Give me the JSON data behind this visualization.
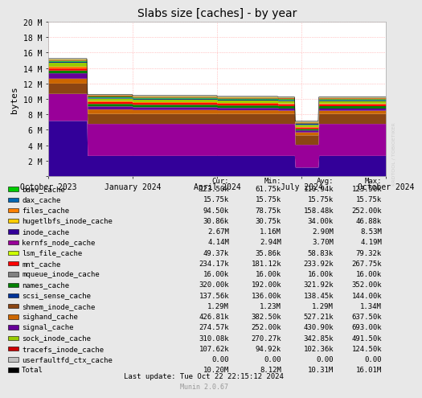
{
  "title": "Slabs size [caches] - by year",
  "ylabel": "bytes",
  "background_color": "#e8e8e8",
  "plot_background": "#ffffff",
  "grid_color": "#ff9999",
  "x_tick_labels": [
    "October 2023",
    "January 2024",
    "April 2024",
    "July 2024",
    "October 2024"
  ],
  "x_tick_pos": [
    0.0,
    0.25,
    0.5,
    0.75,
    1.0
  ],
  "y_tick_vals": [
    0,
    2000000,
    4000000,
    6000000,
    8000000,
    10000000,
    12000000,
    14000000,
    16000000,
    18000000,
    20000000
  ],
  "y_tick_labels": [
    "",
    "2 M",
    "4 M",
    "6 M",
    "8 M",
    "10 M",
    "12 M",
    "14 M",
    "16 M",
    "18 M",
    "20 M"
  ],
  "ylim": [
    0,
    20000000
  ],
  "watermark": "RRDTOOL / TOBIOETIKER",
  "last_update": "Last update: Tue Oct 22 22:15:12 2024",
  "munin_version": "Munin 2.0.67",
  "legend": [
    {
      "label": "bdev_cache",
      "color": "#00cc00",
      "cur": "123.50k",
      "min": "61.75k",
      "avg": "110.94k",
      "max": "123.50k"
    },
    {
      "label": "dax_cache",
      "color": "#0066b3",
      "cur": "15.75k",
      "min": "15.75k",
      "avg": "15.75k",
      "max": "15.75k"
    },
    {
      "label": "files_cache",
      "color": "#ff8000",
      "cur": "94.50k",
      "min": "78.75k",
      "avg": "158.48k",
      "max": "252.00k"
    },
    {
      "label": "hugetlbfs_inode_cache",
      "color": "#ffcc00",
      "cur": "30.86k",
      "min": "30.75k",
      "avg": "34.00k",
      "max": "46.88k"
    },
    {
      "label": "inode_cache",
      "color": "#330099",
      "cur": "2.67M",
      "min": "1.16M",
      "avg": "2.90M",
      "max": "8.53M"
    },
    {
      "label": "kernfs_node_cache",
      "color": "#990099",
      "cur": "4.14M",
      "min": "2.94M",
      "avg": "3.70M",
      "max": "4.19M"
    },
    {
      "label": "lsm_file_cache",
      "color": "#ccff00",
      "cur": "49.37k",
      "min": "35.86k",
      "avg": "58.83k",
      "max": "79.32k"
    },
    {
      "label": "mnt_cache",
      "color": "#ff0000",
      "cur": "234.17k",
      "min": "181.12k",
      "avg": "233.92k",
      "max": "267.75k"
    },
    {
      "label": "mqueue_inode_cache",
      "color": "#808080",
      "cur": "16.00k",
      "min": "16.00k",
      "avg": "16.00k",
      "max": "16.00k"
    },
    {
      "label": "names_cache",
      "color": "#008000",
      "cur": "320.00k",
      "min": "192.00k",
      "avg": "321.92k",
      "max": "352.00k"
    },
    {
      "label": "scsi_sense_cache",
      "color": "#003399",
      "cur": "137.56k",
      "min": "136.00k",
      "avg": "138.45k",
      "max": "144.00k"
    },
    {
      "label": "shmem_inode_cache",
      "color": "#8b4513",
      "cur": "1.29M",
      "min": "1.23M",
      "avg": "1.29M",
      "max": "1.34M"
    },
    {
      "label": "sighand_cache",
      "color": "#cc6600",
      "cur": "426.81k",
      "min": "382.50k",
      "avg": "527.21k",
      "max": "637.50k"
    },
    {
      "label": "signal_cache",
      "color": "#660099",
      "cur": "274.57k",
      "min": "252.00k",
      "avg": "430.90k",
      "max": "693.00k"
    },
    {
      "label": "sock_inode_cache",
      "color": "#99cc00",
      "cur": "310.08k",
      "min": "270.27k",
      "avg": "342.85k",
      "max": "491.50k"
    },
    {
      "label": "tracefs_inode_cache",
      "color": "#cc0000",
      "cur": "107.62k",
      "min": "94.92k",
      "avg": "102.36k",
      "max": "124.50k"
    },
    {
      "label": "userfaultfd_ctx_cache",
      "color": "#c0c0c0",
      "cur": "0.00",
      "min": "0.00",
      "avg": "0.00",
      "max": "0.00"
    },
    {
      "label": "Total",
      "color": "#000000",
      "cur": "10.20M",
      "min": "8.12M",
      "avg": "10.31M",
      "max": "16.01M"
    }
  ],
  "col_headers": [
    "Cur:",
    "Min:",
    "Avg:",
    "Max:"
  ]
}
